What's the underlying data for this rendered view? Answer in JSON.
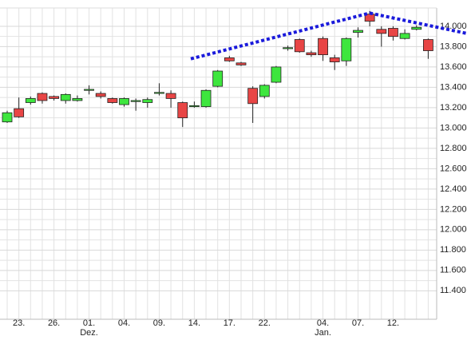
{
  "chart_data": {
    "type": "candlestick",
    "categories": [
      null,
      "23.",
      null,
      null,
      "26.",
      null,
      null,
      "01.",
      null,
      null,
      "04.",
      null,
      null,
      "09.",
      null,
      null,
      "14.",
      null,
      null,
      "17.",
      null,
      null,
      "22.",
      null,
      null,
      null,
      null,
      "04.",
      null,
      null,
      "07.",
      null,
      null,
      "12.",
      null,
      null,
      null
    ],
    "month_labels": [
      null,
      null,
      null,
      null,
      null,
      null,
      null,
      "Dez.",
      null,
      null,
      null,
      null,
      null,
      null,
      null,
      null,
      null,
      null,
      null,
      null,
      null,
      null,
      null,
      null,
      null,
      null,
      null,
      "Jan.",
      null,
      null,
      null,
      null,
      null,
      null,
      null,
      null,
      null
    ],
    "open": [
      13060,
      13190,
      13250,
      13340,
      13310,
      13270,
      13270,
      13370,
      13340,
      13290,
      13230,
      13260,
      13250,
      13340,
      13340,
      13250,
      13210,
      13210,
      13410,
      13690,
      13640,
      13390,
      13310,
      13450,
      13780,
      13870,
      13740,
      13880,
      13690,
      13660,
      13940,
      14120,
      13970,
      13980,
      13880,
      13970,
      13870
    ],
    "high": [
      13170,
      13300,
      13310,
      13350,
      13320,
      13340,
      13320,
      13420,
      13360,
      13300,
      13300,
      13290,
      13300,
      13440,
      13370,
      13260,
      13260,
      13380,
      13570,
      13710,
      13650,
      13410,
      13430,
      13610,
      13810,
      13880,
      13760,
      13900,
      13720,
      13890,
      13990,
      14150,
      14000,
      14000,
      13970,
      14010,
      13880
    ],
    "low": [
      13050,
      13100,
      13230,
      13240,
      13270,
      13240,
      13260,
      13330,
      13290,
      13240,
      13210,
      13170,
      13200,
      13320,
      13200,
      13010,
      13200,
      13200,
      13400,
      13650,
      13610,
      13050,
      13290,
      13440,
      13760,
      13740,
      13700,
      13660,
      13570,
      13610,
      13890,
      14000,
      13800,
      13860,
      13870,
      13960,
      13680
    ],
    "close": [
      13150,
      13110,
      13290,
      13270,
      13290,
      13330,
      13290,
      13380,
      13310,
      13250,
      13290,
      13270,
      13280,
      13350,
      13290,
      13100,
      13220,
      13370,
      13560,
      13660,
      13620,
      13240,
      13420,
      13600,
      13790,
      13750,
      13720,
      13720,
      13650,
      13880,
      13960,
      14050,
      13930,
      13900,
      13930,
      13990,
      13760
    ],
    "up_color": "#3ee63e",
    "down_color": "#e84545",
    "trendlines": [
      {
        "color": "#1a1adb",
        "points": [
          [
            15.7,
            13680
          ],
          [
            31,
            14130
          ]
        ]
      },
      {
        "color": "#1a1adb",
        "points": [
          [
            31,
            14130
          ],
          [
            39.3,
            13930
          ]
        ]
      }
    ],
    "ylim": [
      11120,
      14180
    ],
    "yticks": [
      {
        "value": 11400,
        "label": "11.400"
      },
      {
        "value": 11600,
        "label": "11.600"
      },
      {
        "value": 11800,
        "label": "11.800"
      },
      {
        "value": 12000,
        "label": "12.000"
      },
      {
        "value": 12200,
        "label": "12.200"
      },
      {
        "value": 12400,
        "label": "12.400"
      },
      {
        "value": 12600,
        "label": "12.600"
      },
      {
        "value": 12800,
        "label": "12.800"
      },
      {
        "value": 13000,
        "label": "13.000"
      },
      {
        "value": 13200,
        "label": "13.200"
      },
      {
        "value": 13400,
        "label": "13.400"
      },
      {
        "value": 13600,
        "label": "13.600"
      },
      {
        "value": 13800,
        "label": "13.800"
      },
      {
        "value": 14000,
        "label": "14.000"
      }
    ],
    "grid": true
  }
}
